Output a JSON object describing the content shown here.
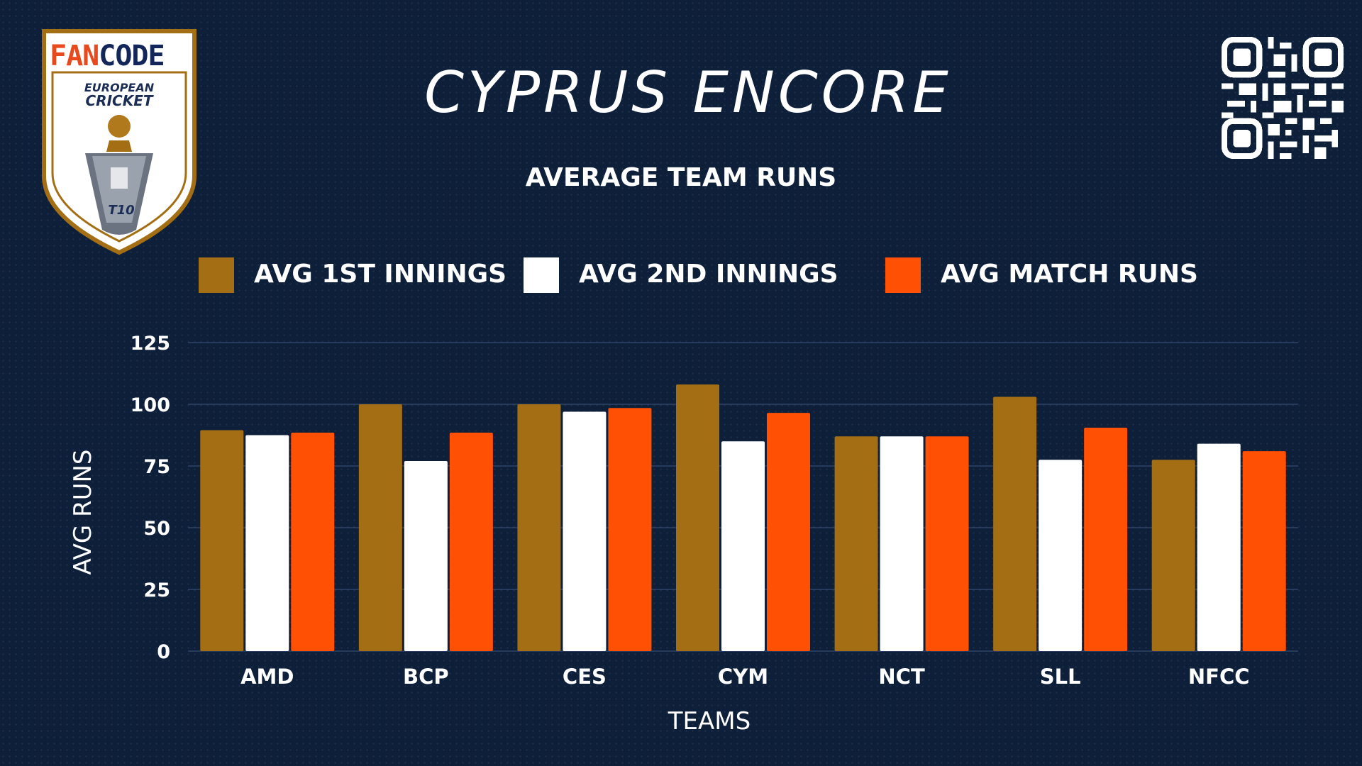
{
  "header": {
    "title": "CYPRUS ENCORE",
    "subtitle": "AVERAGE TEAM RUNS"
  },
  "logo": {
    "wordmark_fan": "FAN",
    "wordmark_code": "CODE",
    "line1": "EUROPEAN",
    "line2": "CRICKET",
    "badge": "T10",
    "icon": "shield-trophy-logo"
  },
  "qr": {
    "icon": "qr-code-icon"
  },
  "colors": {
    "background": "#0e1f3a",
    "gold": "#a46f14",
    "white": "#ffffff",
    "orange": "#ff5004",
    "grid": "#2e4566"
  },
  "chart_data": {
    "type": "bar",
    "title": "AVERAGE TEAM RUNS",
    "xlabel": "TEAMS",
    "ylabel": "AVG RUNS",
    "ylim": [
      0,
      125
    ],
    "yticks": [
      0,
      25,
      50,
      75,
      100,
      125
    ],
    "grid": true,
    "legend_position": "top",
    "categories": [
      "AMD",
      "BCP",
      "CES",
      "CYM",
      "NCT",
      "SLL",
      "NFCC"
    ],
    "series": [
      {
        "name": "AVG 1ST INNINGS",
        "color": "#a46f14",
        "values": [
          89.5,
          100,
          100,
          108,
          87,
          103,
          77.5
        ]
      },
      {
        "name": "AVG 2ND INNINGS",
        "color": "#ffffff",
        "values": [
          87.5,
          77,
          97,
          85,
          87,
          77.5,
          84
        ]
      },
      {
        "name": "AVG MATCH RUNS",
        "color": "#ff5004",
        "values": [
          88.5,
          88.5,
          98.5,
          96.5,
          87,
          90.5,
          81
        ]
      }
    ]
  }
}
